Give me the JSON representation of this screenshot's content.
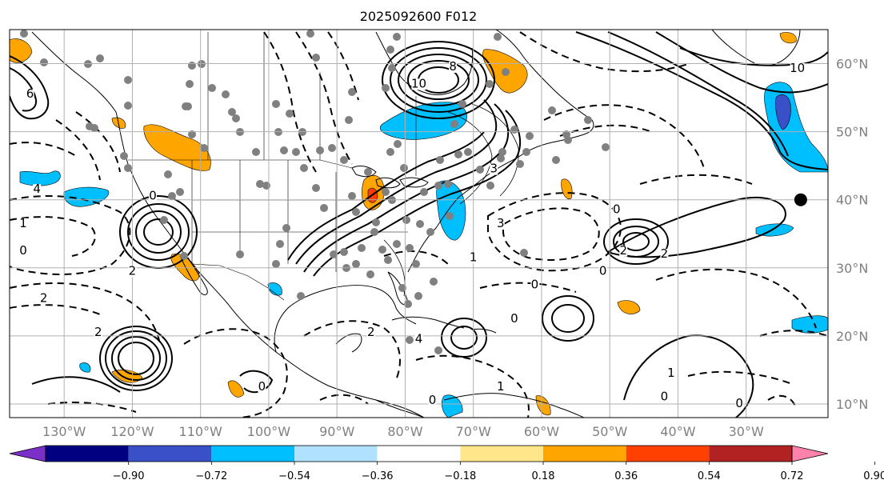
{
  "title": "2025092600 F012",
  "map": {
    "lon_labels": [
      "130°W",
      "120°W",
      "110°W",
      "100°W",
      "90°W",
      "80°W",
      "70°W",
      "60°W",
      "50°W",
      "40°W",
      "30°W"
    ],
    "lon_values": [
      -130,
      -120,
      -110,
      -100,
      -90,
      -80,
      -70,
      -60,
      -50,
      -40,
      -30
    ],
    "lat_labels": [
      "60°N",
      "50°N",
      "40°N",
      "30°N",
      "20°N",
      "10°N"
    ],
    "lat_values": [
      60,
      50,
      40,
      30,
      20,
      10
    ],
    "lon_range": [
      -138,
      -18
    ],
    "lat_range": [
      8,
      65
    ],
    "grid": true,
    "contour_labels": [
      {
        "text": "8",
        "lon": -73,
        "lat": 59
      },
      {
        "text": "10",
        "lon": -78,
        "lat": 56.5
      },
      {
        "text": "10",
        "lon": -22.5,
        "lat": 58.8
      },
      {
        "text": "4",
        "lon": -134,
        "lat": 41
      },
      {
        "text": "0",
        "lon": -49,
        "lat": 38
      },
      {
        "text": "3",
        "lon": -66,
        "lat": 36
      },
      {
        "text": "2",
        "lon": -42,
        "lat": 31.5
      },
      {
        "text": "1",
        "lon": -41,
        "lat": 14
      },
      {
        "text": "0",
        "lon": -42,
        "lat": 10.5
      },
      {
        "text": "0",
        "lon": -31,
        "lat": 9.5
      },
      {
        "text": "2",
        "lon": -133,
        "lat": 25
      },
      {
        "text": "2",
        "lon": -125,
        "lat": 20
      },
      {
        "text": "0",
        "lon": -136,
        "lat": 32
      },
      {
        "text": "1",
        "lon": -136,
        "lat": 36
      },
      {
        "text": "2",
        "lon": -120,
        "lat": 29
      },
      {
        "text": "0",
        "lon": -117,
        "lat": 40
      },
      {
        "text": "2",
        "lon": -48,
        "lat": 32
      },
      {
        "text": "0",
        "lon": -51,
        "lat": 29
      },
      {
        "text": "1",
        "lon": -70,
        "lat": 31
      },
      {
        "text": "2",
        "lon": -85,
        "lat": 20
      },
      {
        "text": "4",
        "lon": -78,
        "lat": 19
      },
      {
        "text": "0",
        "lon": -64,
        "lat": 22
      },
      {
        "text": "0",
        "lon": -61,
        "lat": 27
      },
      {
        "text": "1",
        "lon": -66,
        "lat": 12
      },
      {
        "text": "0",
        "lon": -76,
        "lat": 10
      },
      {
        "text": "0",
        "lon": -101,
        "lat": 12
      },
      {
        "text": "3",
        "lon": -67,
        "lat": 44
      },
      {
        "text": "6",
        "lon": -135,
        "lat": 55
      }
    ],
    "marker": {
      "lon": -22,
      "lat": 40
    }
  },
  "colorbar": {
    "tick_labels": [
      "−0.90",
      "−0.72",
      "−0.54",
      "−0.36",
      "−0.18",
      "0.18",
      "0.36",
      "0.54",
      "0.72",
      "0.90"
    ],
    "bins": [
      {
        "from": -1.08,
        "to": -0.9,
        "color": "#7b2fc9"
      },
      {
        "from": -0.9,
        "to": -0.72,
        "color": "#000080"
      },
      {
        "from": -0.72,
        "to": -0.54,
        "color": "#3a50c8"
      },
      {
        "from": -0.54,
        "to": -0.36,
        "color": "#00bfff"
      },
      {
        "from": -0.36,
        "to": -0.18,
        "color": "#b0e2ff"
      },
      {
        "from": -0.18,
        "to": 0.18,
        "color": "#ffffff"
      },
      {
        "from": 0.18,
        "to": 0.36,
        "color": "#ffe68a"
      },
      {
        "from": 0.36,
        "to": 0.54,
        "color": "#ffa500"
      },
      {
        "from": 0.54,
        "to": 0.72,
        "color": "#ff4000"
      },
      {
        "from": 0.72,
        "to": 0.9,
        "color": "#b22222"
      },
      {
        "from": 0.9,
        "to": 1.08,
        "color": "#ff82ab"
      }
    ],
    "extend": "both"
  }
}
